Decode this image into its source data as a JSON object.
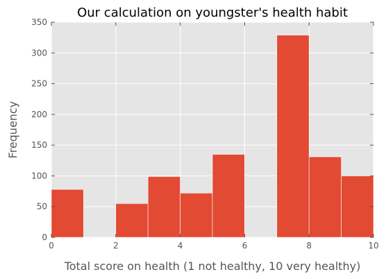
{
  "chart_data": {
    "type": "bar",
    "subtype": "histogram",
    "title": "Our calculation on youngster's health habit",
    "xlabel": "Total score on health (1 not healthy, 10 very healthy)",
    "ylabel": "Frequency",
    "xlim": [
      0,
      10
    ],
    "ylim": [
      0,
      350
    ],
    "xticks": [
      0,
      2,
      4,
      6,
      8,
      10
    ],
    "yticks": [
      0,
      50,
      100,
      150,
      200,
      250,
      300,
      350
    ],
    "grid": true,
    "bin_edges": [
      0,
      1,
      2,
      3,
      4,
      5,
      6,
      7,
      8,
      9,
      10
    ],
    "values": [
      78,
      0,
      55,
      99,
      72,
      135,
      0,
      329,
      131,
      100
    ],
    "colors": {
      "bar": "#E24A33",
      "background": "#E5E5E5",
      "grid": "#FFFFFF",
      "tick_text": "#555555",
      "title_text": "#000000"
    }
  }
}
